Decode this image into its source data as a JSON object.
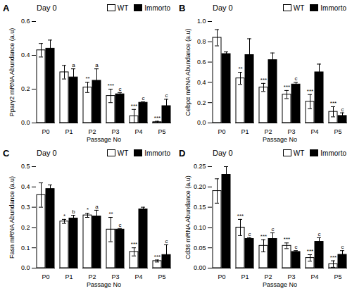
{
  "chart_data": [
    {
      "type": "bar",
      "panel_label": "A",
      "title": "Day 0",
      "ylabel": "Pparγ2 mRNA Abundance (a.u)",
      "xlabel": "Passage No",
      "categories": [
        "P0",
        "P1",
        "P2",
        "P3",
        "P4",
        "P5"
      ],
      "series": [
        {
          "name": "WT",
          "color": "#ffffff",
          "values": [
            0.43,
            0.3,
            0.21,
            0.16,
            0.04,
            0.005
          ],
          "errors": [
            0.04,
            0.04,
            0.03,
            0.04,
            0.04,
            0.005
          ],
          "annotations": [
            null,
            null,
            "**",
            "***",
            "***",
            "***"
          ]
        },
        {
          "name": "Immorto",
          "color": "#000000",
          "values": [
            0.44,
            0.27,
            0.25,
            0.17,
            0.12,
            0.1
          ],
          "errors": [
            0.05,
            0.05,
            0.07,
            0.01,
            0.005,
            0.04
          ],
          "annotations": [
            null,
            "a",
            "a",
            "c",
            "c",
            "c"
          ]
        }
      ],
      "ylim": [
        0,
        0.6
      ],
      "yticks": [
        {
          "value": 0,
          "label": "0.0"
        },
        {
          "value": 0.2,
          "label": "0.2"
        },
        {
          "value": 0.4,
          "label": "0.4"
        },
        {
          "value": 0.6,
          "label": "0.6"
        }
      ],
      "legend": "top-right"
    },
    {
      "type": "bar",
      "panel_label": "B",
      "title": "Day 0",
      "ylabel": "Cebpα mRNA Abundance (a.u)",
      "xlabel": "Passage No",
      "categories": [
        "P0",
        "P1",
        "P2",
        "P3",
        "P4",
        "P5"
      ],
      "series": [
        {
          "name": "WT",
          "color": "#ffffff",
          "values": [
            0.84,
            0.44,
            0.35,
            0.28,
            0.21,
            0.11
          ],
          "errors": [
            0.08,
            0.06,
            0.04,
            0.04,
            0.07,
            0.05
          ],
          "annotations": [
            null,
            "**",
            "***",
            "***",
            "***",
            "***"
          ]
        },
        {
          "name": "Immorto",
          "color": "#000000",
          "values": [
            0.68,
            0.67,
            0.62,
            0.38,
            0.5,
            0.07
          ],
          "errors": [
            0.02,
            0.16,
            0.07,
            0.02,
            0.08,
            0.03
          ],
          "annotations": [
            null,
            null,
            null,
            "c",
            null,
            "c"
          ]
        }
      ],
      "ylim": [
        0,
        1.0
      ],
      "yticks": [
        {
          "value": 0,
          "label": "0.0"
        },
        0.2,
        0.4,
        0.6,
        0.8,
        {
          "value": 1.0,
          "label": "1.0"
        }
      ],
      "legend": "top-right"
    },
    {
      "type": "bar",
      "panel_label": "C",
      "title": "Day 0",
      "ylabel": "Fasn mRNA Abundance (a.u)",
      "xlabel": "Passage No",
      "categories": [
        "P0",
        "P1",
        "P2",
        "P3",
        "P4",
        "P5"
      ],
      "series": [
        {
          "name": "WT",
          "color": "#ffffff",
          "values": [
            0.36,
            0.23,
            0.26,
            0.19,
            0.08,
            0.035
          ],
          "errors": [
            0.06,
            0.01,
            0.01,
            0.06,
            0.02,
            0.005
          ],
          "annotations": [
            null,
            "*",
            "*",
            "**",
            "***",
            "***"
          ]
        },
        {
          "name": "Immorto",
          "color": "#000000",
          "values": [
            0.39,
            0.245,
            0.255,
            0.19,
            0.29,
            0.065
          ],
          "errors": [
            0.02,
            0.015,
            0.03,
            0.005,
            0.01,
            0.05
          ],
          "annotations": [
            null,
            "b",
            "a",
            "c",
            null,
            "c"
          ]
        }
      ],
      "ylim": [
        0,
        0.5
      ],
      "yticks": [
        {
          "value": 0,
          "label": "0.0"
        },
        0.1,
        0.2,
        0.3,
        0.4,
        0.5
      ],
      "legend": "top-right"
    },
    {
      "type": "bar",
      "panel_label": "D",
      "title": "Day 0",
      "ylabel": "Cd36 mRNA Abundance (a.u)",
      "xlabel": "Passage No",
      "categories": [
        "P0",
        "P1",
        "P2",
        "P3",
        "P4",
        "P5"
      ],
      "series": [
        {
          "name": "WT",
          "color": "#ffffff",
          "values": [
            0.19,
            0.1,
            0.055,
            0.055,
            0.025,
            0.01
          ],
          "errors": [
            0.03,
            0.02,
            0.015,
            0.007,
            0.008,
            0.008
          ],
          "annotations": [
            null,
            "***",
            "***",
            "***",
            "***",
            "***"
          ]
        },
        {
          "name": "Immorto",
          "color": "#000000",
          "values": [
            0.23,
            0.072,
            0.072,
            0.04,
            0.065,
            0.033
          ],
          "errors": [
            0.02,
            0.003,
            0.015,
            0.003,
            0.01,
            0.01
          ],
          "annotations": [
            null,
            "c",
            "c",
            "c",
            "c",
            "c"
          ]
        }
      ],
      "ylim": [
        0,
        0.25
      ],
      "yticks": [
        {
          "value": 0,
          "label": "0.00"
        },
        0.05,
        {
          "value": 0.1,
          "label": "0.10"
        },
        0.15,
        {
          "value": 0.2,
          "label": "0.20"
        },
        0.25
      ],
      "legend": "top-right"
    }
  ]
}
